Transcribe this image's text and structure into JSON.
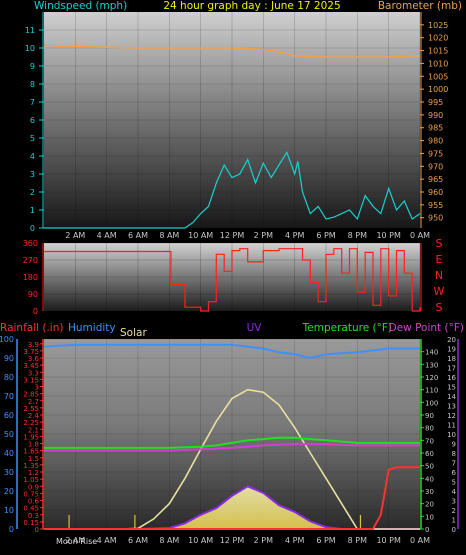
{
  "colors": {
    "wind": "#19d0d0",
    "baro": "#f0a04c",
    "dir": "#ff2020",
    "rain": "#ff3030",
    "humidity": "#3f8fff",
    "solar": "#e8e0a0",
    "uv": "#8a2be2",
    "temp": "#20e020",
    "dew": "#d040d0",
    "title": "#f0f000",
    "axis": "#c8c8c8"
  },
  "header": {
    "wind_label": "Windspeed (mph)",
    "title": "24 hour graph day : June 17 2025",
    "baro_label": "Barometer (mb)"
  },
  "panel3": {
    "rain_label": "Rainfall (.in)",
    "humidity_label": "Humidity",
    "solar_label": "Solar",
    "uv_label": "UV",
    "temp_label": "Temperature (°F)",
    "dew_label": "Dew Point (°F)",
    "moon_label": "Moon Rise"
  },
  "chart_data": [
    {
      "type": "line",
      "name": "wind-baro",
      "x_ticks": [
        "2 AM",
        "4 AM",
        "6 AM",
        "8 AM",
        "10 AM",
        "12 PM",
        "2 PM",
        "4 PM",
        "6 PM",
        "8 PM",
        "10 PM",
        "0 AM"
      ],
      "left_axis": {
        "label": "Windspeed (mph)",
        "range": [
          0,
          12
        ],
        "ticks": [
          0,
          1,
          2,
          3,
          4,
          5,
          6,
          7,
          8,
          9,
          10,
          11
        ]
      },
      "right_axis": {
        "label": "Barometer (mb)",
        "range": [
          946,
          1030
        ],
        "ticks": [
          950,
          955,
          960,
          965,
          970,
          975,
          980,
          985,
          990,
          995,
          1000,
          1005,
          1010,
          1015,
          1020,
          1025
        ]
      },
      "series": [
        {
          "name": "Windspeed (mph)",
          "axis": "left",
          "x": [
            0,
            1,
            2,
            3,
            4,
            5,
            6,
            7,
            8,
            9,
            9.5,
            10,
            10.5,
            11,
            11.5,
            12,
            12.5,
            13,
            13.5,
            14,
            14.5,
            15,
            15.5,
            16,
            16.2,
            16.5,
            17,
            17.5,
            18,
            18.5,
            19,
            19.5,
            20,
            20.5,
            21,
            21.5,
            22,
            22.5,
            23,
            23.5,
            24
          ],
          "y": [
            0,
            0,
            0,
            0,
            0,
            0,
            0,
            0,
            0,
            0,
            0.3,
            0.8,
            1.2,
            2.5,
            3.5,
            2.8,
            3.0,
            3.8,
            2.5,
            3.6,
            2.8,
            3.5,
            4.2,
            3.0,
            3.7,
            2.0,
            0.8,
            1.2,
            0.5,
            0.6,
            0.8,
            1.0,
            0.5,
            1.8,
            1.2,
            0.8,
            2.2,
            1.0,
            1.5,
            0.5,
            0.8
          ]
        },
        {
          "name": "Barometer (mb)",
          "axis": "right",
          "x": [
            0,
            2,
            4,
            6,
            8,
            10,
            12,
            14,
            15,
            16,
            18,
            20,
            22,
            24
          ],
          "y": [
            1017,
            1016.5,
            1016.3,
            1016,
            1016,
            1016,
            1016,
            1015.5,
            1014.5,
            1013,
            1012.5,
            1012.5,
            1012.5,
            1013
          ]
        }
      ]
    },
    {
      "type": "scatter",
      "name": "wind-direction",
      "y_axis": {
        "range": [
          0,
          360
        ],
        "ticks": [
          0,
          90,
          180,
          270,
          360
        ]
      },
      "compass": [
        "S",
        "E",
        "N",
        "W",
        "S"
      ],
      "series": [
        {
          "name": "Wind direction",
          "x": [
            0,
            2,
            4,
            6,
            7.9,
            8.1,
            9,
            10,
            10.5,
            11,
            11.5,
            12,
            12.5,
            13,
            14,
            15,
            16,
            16.5,
            17,
            17.5,
            18,
            18.5,
            19,
            19.5,
            20,
            20.5,
            21,
            21.5,
            22,
            22.5,
            23,
            23.5,
            24
          ],
          "y": [
            315,
            315,
            315,
            315,
            315,
            140,
            20,
            0,
            50,
            300,
            210,
            320,
            330,
            260,
            320,
            330,
            330,
            270,
            150,
            50,
            300,
            330,
            200,
            330,
            100,
            310,
            30,
            330,
            80,
            320,
            200,
            0,
            20
          ]
        }
      ]
    },
    {
      "type": "line",
      "name": "weather-multi",
      "x_ticks": [
        "2 AM",
        "4 AM",
        "6 AM",
        "8 AM",
        "10 AM",
        "12 PM",
        "2 PM",
        "4 PM",
        "6 PM",
        "8 PM",
        "10 PM",
        "0 AM"
      ],
      "left_axes": [
        {
          "label": "Humidity",
          "range": [
            0,
            100
          ],
          "ticks": [
            0,
            10,
            20,
            30,
            40,
            50,
            60,
            70,
            80,
            90,
            100
          ]
        },
        {
          "label": "Rainfall (.in)",
          "range": [
            0,
            4
          ],
          "ticks": [
            "0",
            "0.15",
            "0.3",
            "0.45",
            "0.6",
            "0.75",
            "0.9",
            "1.05",
            "1.2",
            "1.35",
            "1.5",
            "1.65",
            "1.8",
            "1.95",
            "2.1",
            "2.25",
            "2.4",
            "2.55",
            "2.7",
            "2.85",
            "3",
            "3.15",
            "3.3",
            "3.45",
            "3.6",
            "3.75",
            "3.9"
          ]
        }
      ],
      "right_axes": [
        {
          "label": "Temperature (°F)",
          "range": [
            0,
            150
          ],
          "ticks": [
            0,
            10,
            20,
            30,
            40,
            50,
            60,
            70,
            80,
            90,
            100,
            110,
            120,
            130,
            140
          ]
        },
        {
          "label": "UV",
          "range": [
            0,
            20
          ],
          "ticks": [
            0,
            1,
            2,
            3,
            4,
            5,
            6,
            7,
            8,
            9,
            10,
            11,
            12,
            13,
            14,
            15,
            16,
            17,
            18,
            19,
            20
          ]
        }
      ],
      "series": [
        {
          "name": "Humidity",
          "x": [
            0,
            2,
            4,
            6,
            8,
            10,
            12,
            13,
            14,
            15,
            16,
            17,
            18,
            20,
            22,
            24
          ],
          "y": [
            96,
            97,
            97,
            97,
            97,
            97,
            97,
            96,
            95,
            93,
            92,
            90,
            92,
            93,
            95,
            95
          ]
        },
        {
          "name": "Rainfall (.in)",
          "x": [
            0,
            2,
            4,
            6,
            8,
            10,
            12,
            14,
            16,
            18,
            20,
            21,
            21.5,
            22,
            22.5,
            23,
            24
          ],
          "y": [
            0,
            0,
            0,
            0,
            0,
            0,
            0,
            0,
            0,
            0,
            0,
            0,
            0.3,
            1.25,
            1.3,
            1.3,
            1.3
          ]
        },
        {
          "name": "Temperature (°F)",
          "x": [
            0,
            2,
            4,
            6,
            8,
            10,
            11,
            12,
            13,
            14,
            15,
            16,
            17,
            18,
            20,
            22,
            24
          ],
          "y": [
            64,
            64,
            64,
            64,
            64,
            65,
            66,
            68,
            70,
            71,
            72,
            72,
            71,
            70,
            68,
            68,
            68
          ]
        },
        {
          "name": "Dew Point (°F)",
          "x": [
            0,
            2,
            4,
            6,
            8,
            10,
            12,
            14,
            16,
            18,
            20,
            22,
            24
          ],
          "y": [
            62,
            62,
            62,
            62,
            62,
            63,
            64,
            66,
            67,
            67,
            66,
            66,
            66
          ]
        },
        {
          "name": "Solar",
          "x": [
            0,
            5,
            6,
            7,
            8,
            9,
            10,
            11,
            12,
            13,
            14,
            15,
            16,
            17,
            18,
            19,
            20,
            24
          ],
          "y": [
            0,
            0,
            0.5,
            8,
            20,
            40,
            63,
            85,
            103,
            110,
            108,
            98,
            80,
            60,
            40,
            20,
            0,
            0
          ]
        },
        {
          "name": "UV",
          "x": [
            0,
            6,
            8,
            9,
            10,
            11,
            12,
            13,
            14,
            15,
            16,
            17,
            18,
            19,
            24
          ],
          "y": [
            0,
            0,
            0.1,
            0.6,
            1.5,
            2.2,
            3.5,
            4.5,
            3.8,
            2.5,
            1.8,
            0.8,
            0.2,
            0,
            0
          ]
        }
      ]
    }
  ]
}
